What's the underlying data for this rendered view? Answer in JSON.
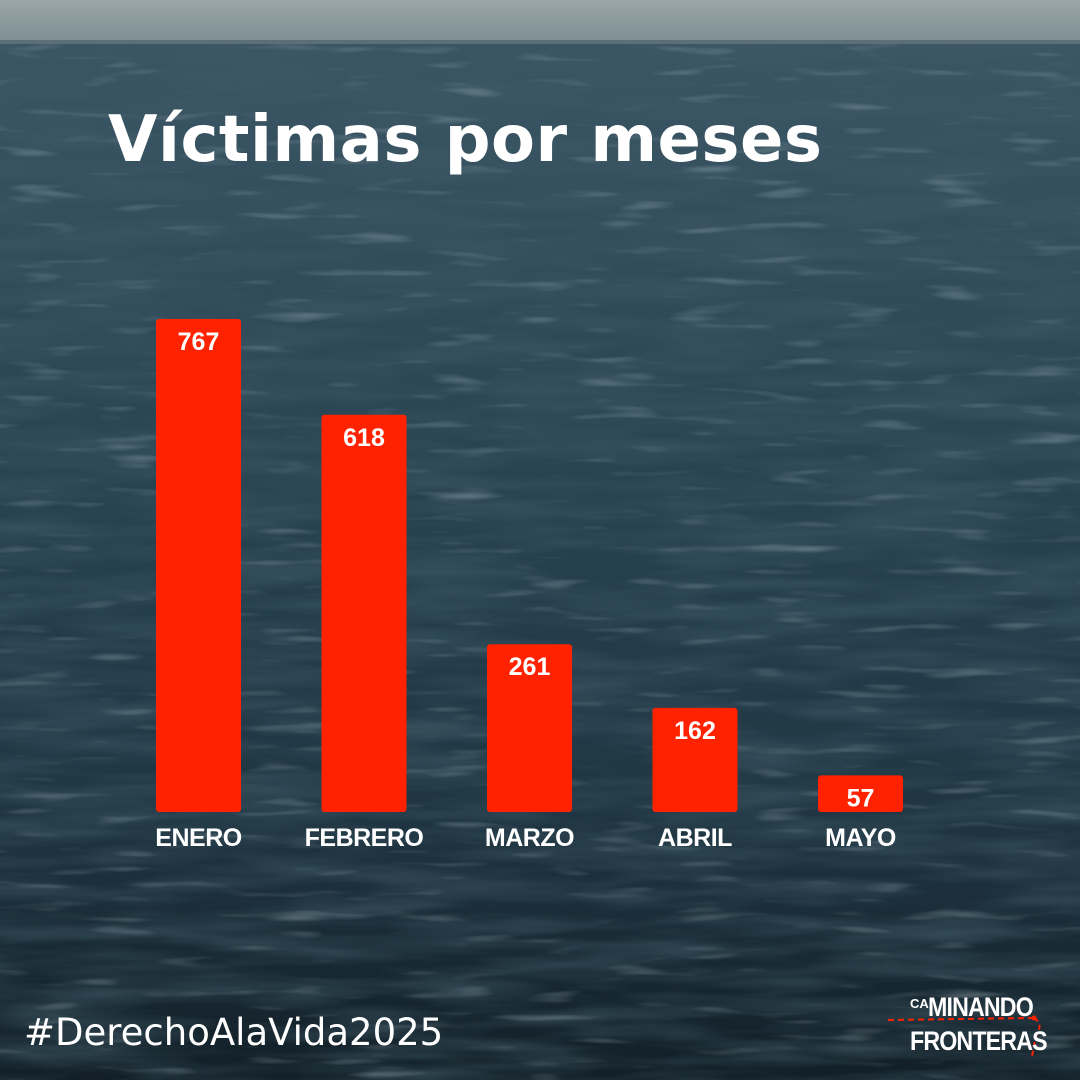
{
  "title": "Víctimas por meses",
  "hashtag": "#DerechoAlaVida2025",
  "logo": {
    "line_small": "CA",
    "line1": "MINANDO",
    "line2": "FRONTERAS"
  },
  "colors": {
    "bar": "#ff2200",
    "text": "#ffffff",
    "sea_dark": "#15242e",
    "sea_mid": "#2c4756",
    "sky": "#8e9c9f"
  },
  "chart_data": {
    "type": "bar",
    "categories": [
      "ENERO",
      "FEBRERO",
      "MARZO",
      "ABRIL",
      "MAYO"
    ],
    "values": [
      767,
      618,
      261,
      162,
      57
    ],
    "title": "Víctimas por meses",
    "xlabel": "",
    "ylabel": "",
    "data_labels": true,
    "grid": false
  }
}
